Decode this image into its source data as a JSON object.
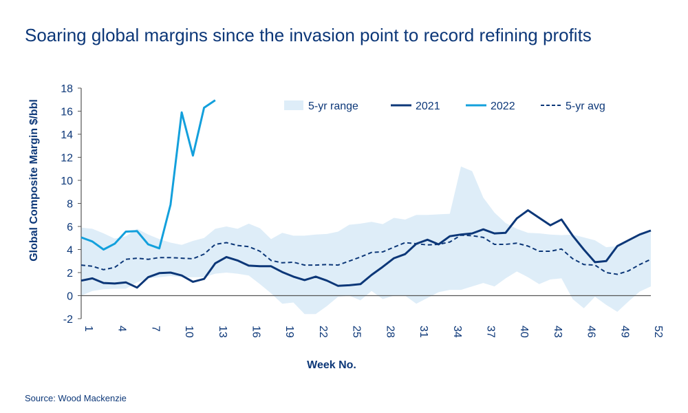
{
  "title": "Soaring global margins since the invasion point to record refining profits",
  "source": "Source: Wood Mackenzie",
  "colors": {
    "dark": "#0c3778",
    "light": "#13a0dc",
    "band": "#deedf8",
    "axis": "#555555"
  },
  "chart_data": {
    "type": "line",
    "title": "Soaring global margins since the invasion point to record refining profits",
    "xlabel": "Week No.",
    "ylabel": "Global Composite Margin $/bbl",
    "ylim": [
      -2,
      18
    ],
    "yticks": [
      -2,
      0,
      2,
      4,
      6,
      8,
      10,
      12,
      14,
      16,
      18
    ],
    "xlim": [
      1,
      52
    ],
    "xticks": [
      1,
      4,
      7,
      10,
      13,
      16,
      19,
      22,
      25,
      28,
      31,
      34,
      37,
      40,
      43,
      46,
      49,
      52
    ],
    "grid": false,
    "legend_placement": "top-right",
    "legend": [
      "5-yr range",
      "2021",
      "2022",
      "5-yr avg"
    ],
    "range": {
      "name": "5-yr range",
      "upper": [
        5.9,
        5.8,
        5.4,
        4.95,
        5.15,
        5.8,
        5.3,
        4.9,
        4.6,
        4.4,
        4.75,
        5.0,
        5.8,
        6.0,
        5.8,
        6.25,
        5.85,
        4.9,
        5.45,
        5.2,
        5.2,
        5.3,
        5.35,
        5.55,
        6.15,
        6.25,
        6.4,
        6.2,
        6.75,
        6.6,
        7.0,
        7.0,
        7.05,
        7.1,
        11.2,
        10.8,
        8.5,
        7.2,
        6.3,
        5.8,
        5.45,
        5.4,
        5.3,
        5.25,
        5.3,
        5.05,
        4.8,
        4.2,
        4.3,
        4.7,
        5.2,
        5.6
      ],
      "lower": [
        0.0,
        0.4,
        0.55,
        0.6,
        0.6,
        1.15,
        1.5,
        1.6,
        1.7,
        1.6,
        1.6,
        1.6,
        1.9,
        2.0,
        1.9,
        1.75,
        1.0,
        0.2,
        -0.7,
        -0.6,
        -1.6,
        -1.6,
        -0.9,
        -0.1,
        0.0,
        -0.4,
        0.4,
        -0.3,
        0.0,
        0.0,
        -0.7,
        -0.2,
        0.3,
        0.5,
        0.5,
        0.8,
        1.1,
        0.8,
        1.5,
        2.1,
        1.6,
        1.0,
        1.4,
        1.5,
        -0.3,
        -1.1,
        -0.1,
        -0.8,
        -1.4,
        -0.5,
        0.35,
        0.8
      ]
    },
    "series": [
      {
        "name": "2021",
        "style": "solid",
        "color": "#0c3778",
        "start_week": 1,
        "values": [
          1.3,
          1.5,
          1.1,
          1.05,
          1.15,
          0.7,
          1.6,
          1.95,
          2.0,
          1.75,
          1.2,
          1.45,
          2.8,
          3.35,
          3.05,
          2.6,
          2.55,
          2.55,
          2.05,
          1.65,
          1.35,
          1.65,
          1.3,
          0.85,
          0.9,
          1.0,
          1.8,
          2.5,
          3.25,
          3.6,
          4.5,
          4.85,
          4.45,
          5.15,
          5.3,
          5.4,
          5.75,
          5.4,
          5.45,
          6.7,
          7.4,
          6.75,
          6.1,
          6.6,
          5.2,
          4.0,
          2.9,
          3.0,
          4.3,
          4.8,
          5.3,
          5.65
        ]
      },
      {
        "name": "2022",
        "style": "solid",
        "color": "#13a0dc",
        "start_week": 1,
        "values": [
          5.05,
          4.7,
          4.0,
          4.5,
          5.55,
          5.6,
          4.45,
          4.1,
          7.9,
          15.9,
          12.15,
          16.3,
          16.95
        ]
      },
      {
        "name": "5-yr avg",
        "style": "dashed",
        "color": "#0c3778",
        "start_week": 1,
        "values": [
          2.65,
          2.55,
          2.25,
          2.45,
          3.15,
          3.25,
          3.15,
          3.3,
          3.3,
          3.25,
          3.2,
          3.6,
          4.45,
          4.6,
          4.35,
          4.25,
          3.85,
          3.05,
          2.85,
          2.9,
          2.65,
          2.65,
          2.7,
          2.65,
          3.0,
          3.35,
          3.75,
          3.8,
          4.2,
          4.6,
          4.5,
          4.4,
          4.45,
          4.65,
          5.25,
          5.2,
          5.05,
          4.45,
          4.45,
          4.55,
          4.3,
          3.85,
          3.85,
          4.05,
          3.2,
          2.7,
          2.65,
          2.0,
          1.85,
          2.15,
          2.7,
          3.15
        ]
      }
    ]
  }
}
